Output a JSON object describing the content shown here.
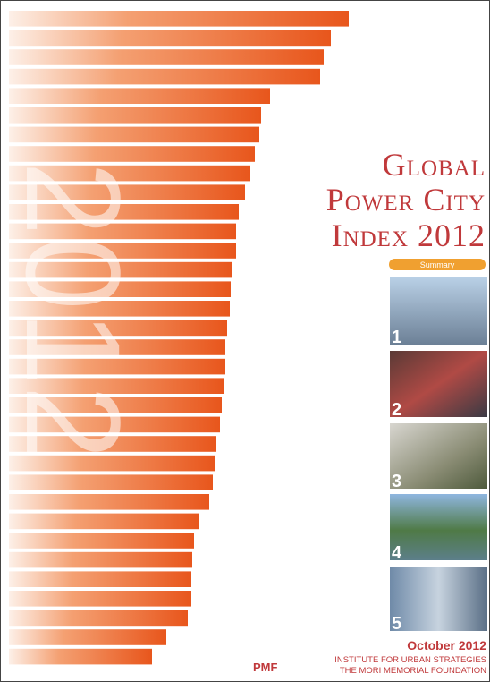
{
  "cover": {
    "numeral": "2012",
    "title": {
      "lines": [
        "Global",
        "Power City",
        "Index 2012"
      ]
    },
    "badge": "Summary",
    "photos": [
      {
        "number": "1"
      },
      {
        "number": "2"
      },
      {
        "number": "3"
      },
      {
        "number": "4"
      },
      {
        "number": "5"
      }
    ],
    "date": "October 2012",
    "publisher": {
      "logo": "PMF",
      "lines": [
        "INSTITUTE FOR URBAN STRATEGIES",
        "THE MORI MEMORIAL FOUNDATION"
      ]
    }
  }
}
